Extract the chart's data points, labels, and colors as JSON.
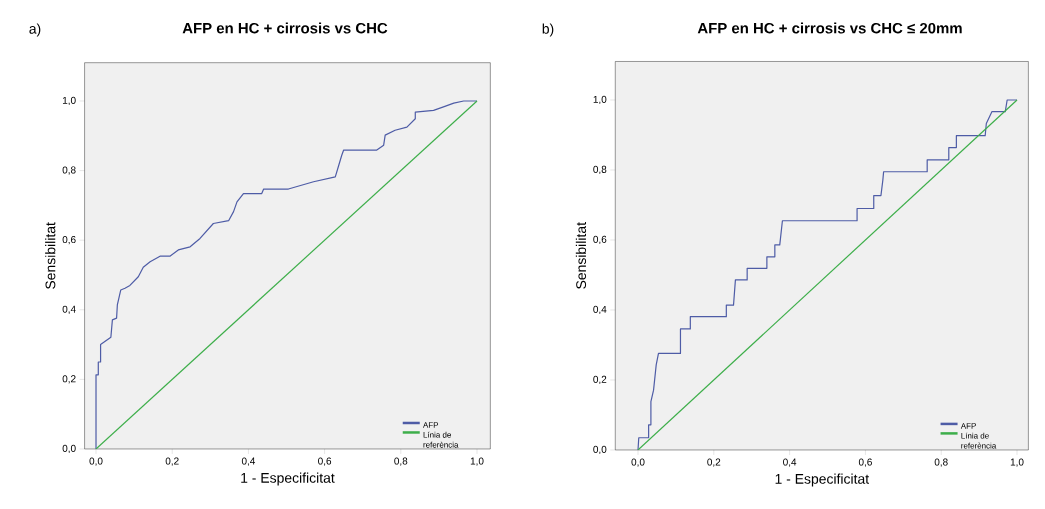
{
  "chart_data": [
    {
      "type": "line",
      "title": "AFP en HC + cirrosis vs CHC",
      "annotations": [
        "a)"
      ],
      "xlabel": "1 - Especificitat",
      "ylabel": "Sensibilitat",
      "xlim": [
        -0.03,
        1.035
      ],
      "ylim": [
        0,
        1.11
      ],
      "xticks": [
        {
          "value": 0,
          "label": "0,0"
        },
        {
          "value": 0.2,
          "label": "0,2"
        },
        {
          "value": 0.4,
          "label": "0,4"
        },
        {
          "value": 0.6,
          "label": "0,6"
        },
        {
          "value": 0.8,
          "label": "0,8"
        },
        {
          "value": 1,
          "label": "1,0"
        }
      ],
      "yticks": [
        {
          "value": 0,
          "label": "0,0"
        },
        {
          "value": 0.2,
          "label": "0,2"
        },
        {
          "value": 0.4,
          "label": "0,4"
        },
        {
          "value": 0.6,
          "label": "0,6"
        },
        {
          "value": 0.8,
          "label": "0,8"
        },
        {
          "value": 1,
          "label": "1,0"
        }
      ],
      "grid": false,
      "legend": "bottom right",
      "marker": "none",
      "series": [
        {
          "name": "AFP",
          "color": "#4e5ca6",
          "x": [
            0,
            0,
            0.006,
            0.006,
            0.012,
            0.012,
            0.039,
            0.043,
            0.054,
            0.056,
            0.065,
            0.076,
            0.089,
            0.111,
            0.124,
            0.142,
            0.168,
            0.194,
            0.216,
            0.247,
            0.273,
            0.308,
            0.348,
            0.361,
            0.37,
            0.387,
            0.435,
            0.44,
            0.505,
            0.571,
            0.628,
            0.636,
            0.645,
            0.65,
            0.737,
            0.755,
            0.759,
            0.785,
            0.816,
            0.838,
            0.838,
            0.886,
            0.912,
            0.939,
            0.965,
            1.0
          ],
          "values": [
            0,
            0.213,
            0.213,
            0.25,
            0.25,
            0.3,
            0.321,
            0.371,
            0.376,
            0.414,
            0.457,
            0.462,
            0.47,
            0.495,
            0.522,
            0.538,
            0.554,
            0.554,
            0.572,
            0.581,
            0.605,
            0.648,
            0.656,
            0.682,
            0.71,
            0.734,
            0.734,
            0.747,
            0.747,
            0.768,
            0.782,
            0.811,
            0.844,
            0.859,
            0.859,
            0.873,
            0.902,
            0.916,
            0.925,
            0.949,
            0.968,
            0.973,
            0.983,
            0.994,
            1.0,
            1.0
          ]
        },
        {
          "name": "Línia de referència",
          "color": "#3dae4a",
          "x": [
            0,
            1
          ],
          "values": [
            0,
            1
          ]
        }
      ]
    },
    {
      "type": "line",
      "title": "AFP en HC + cirrosis vs CHC ≤ 20mm",
      "annotations": [
        "b)"
      ],
      "xlabel": "1 - Especificitat",
      "ylabel": "Sensibilitat",
      "xlim": [
        -0.06,
        1.03
      ],
      "ylim": [
        0,
        1.11
      ],
      "xticks": [
        {
          "value": 0,
          "label": "0,0"
        },
        {
          "value": 0.2,
          "label": "0,2"
        },
        {
          "value": 0.4,
          "label": "0,4"
        },
        {
          "value": 0.6,
          "label": "0,6"
        },
        {
          "value": 0.8,
          "label": "0,8"
        },
        {
          "value": 1,
          "label": "1,0"
        }
      ],
      "yticks": [
        {
          "value": 0,
          "label": "0,0"
        },
        {
          "value": 0.2,
          "label": "0,2"
        },
        {
          "value": 0.4,
          "label": "0,4"
        },
        {
          "value": 0.6,
          "label": "0,6"
        },
        {
          "value": 0.8,
          "label": "0,8"
        },
        {
          "value": 1,
          "label": "1,0"
        }
      ],
      "grid": false,
      "legend": "bottom right",
      "marker": "none",
      "series": [
        {
          "name": "AFP",
          "color": "#4e5ca6",
          "x": [
            0,
            0.002,
            0.028,
            0.028,
            0.034,
            0.034,
            0.041,
            0.048,
            0.054,
            0.112,
            0.112,
            0.138,
            0.138,
            0.233,
            0.233,
            0.252,
            0.257,
            0.288,
            0.288,
            0.34,
            0.34,
            0.361,
            0.361,
            0.374,
            0.381,
            0.578,
            0.578,
            0.622,
            0.622,
            0.641,
            0.646,
            0.648,
            0.763,
            0.763,
            0.82,
            0.82,
            0.84,
            0.84,
            0.916,
            0.919,
            0.934,
            0.969,
            0.974,
            1.0
          ],
          "values": [
            0,
            0.035,
            0.035,
            0.072,
            0.072,
            0.138,
            0.171,
            0.243,
            0.276,
            0.276,
            0.346,
            0.346,
            0.381,
            0.381,
            0.414,
            0.414,
            0.486,
            0.486,
            0.519,
            0.519,
            0.552,
            0.552,
            0.586,
            0.586,
            0.655,
            0.655,
            0.69,
            0.69,
            0.727,
            0.727,
            0.771,
            0.795,
            0.795,
            0.829,
            0.829,
            0.864,
            0.864,
            0.898,
            0.898,
            0.933,
            0.967,
            0.967,
            1.0,
            1.0
          ]
        },
        {
          "name": "Línia de referència",
          "color": "#3dae4a",
          "x": [
            0,
            1
          ],
          "values": [
            0,
            1
          ]
        }
      ]
    }
  ]
}
